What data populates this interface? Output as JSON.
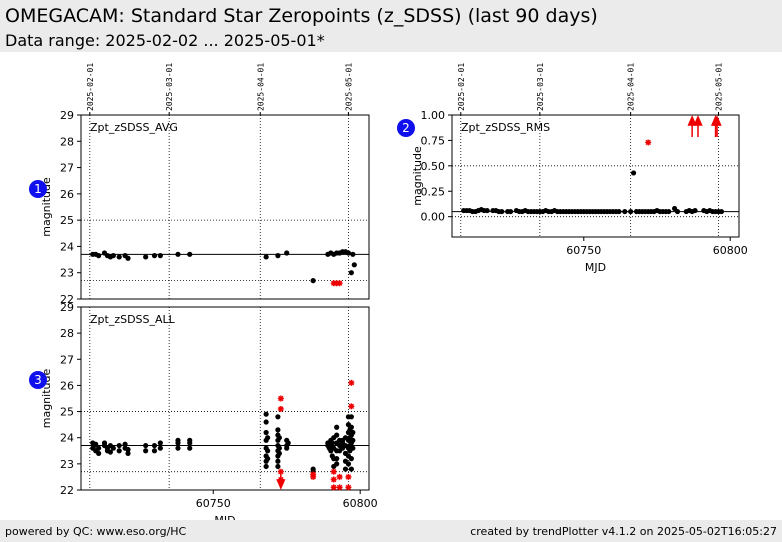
{
  "header": {
    "title": "OMEGACAM: Standard Star Zeropoints (z_SDSS) (last 90 days)",
    "subtitle": "Data range: 2025-02-02 ... 2025-05-01*"
  },
  "footer": {
    "left": "powered by QC: www.eso.org/HC",
    "right": "created by trendPlotter v4.1.2 on 2025-05-02T16:05:27"
  },
  "colors": {
    "good": "#000000",
    "outlier": "#ee0000",
    "badge": "#1010ee"
  },
  "chart_data": [
    {
      "id": "avg",
      "type": "scatter",
      "badge": "1",
      "series_label": "Zpt_zSDSS_AVG",
      "xlabel": "",
      "ylabel": "magnitude",
      "xlim": [
        60705,
        60803
      ],
      "ylim": [
        22,
        29
      ],
      "yticks": [
        "22",
        "23",
        "24",
        "25",
        "26",
        "27",
        "28",
        "29"
      ],
      "yticks_values": [
        22,
        23,
        24,
        25,
        26,
        27,
        28,
        29
      ],
      "xticks": [],
      "date_ticks": [
        {
          "mjd": 60708,
          "label": "2025-02-01"
        },
        {
          "mjd": 60735,
          "label": "2025-03-01"
        },
        {
          "mjd": 60766,
          "label": "2025-04-01"
        },
        {
          "mjd": 60796,
          "label": "2025-05-01"
        }
      ],
      "ref_lines": [
        23.7
      ],
      "dotted_lines": [
        22.7,
        25.0
      ],
      "grid": true,
      "points": [
        [
          60709,
          23.7
        ],
        [
          60710,
          23.7
        ],
        [
          60711,
          23.65
        ],
        [
          60713,
          23.75
        ],
        [
          60714,
          23.65
        ],
        [
          60715,
          23.6
        ],
        [
          60716,
          23.65
        ],
        [
          60718,
          23.6
        ],
        [
          60720,
          23.65
        ],
        [
          60721,
          23.55
        ],
        [
          60727,
          23.6
        ],
        [
          60730,
          23.65
        ],
        [
          60732,
          23.65
        ],
        [
          60738,
          23.7
        ],
        [
          60742,
          23.7
        ],
        [
          60768,
          23.6
        ],
        [
          60772,
          23.65
        ],
        [
          60775,
          23.75
        ],
        [
          60784,
          22.7
        ],
        [
          60789,
          23.7
        ],
        [
          60790,
          23.75
        ],
        [
          60791,
          23.7
        ],
        [
          60792,
          23.75
        ],
        [
          60793,
          23.75
        ],
        [
          60794,
          23.8
        ],
        [
          60795,
          23.8
        ],
        [
          60796,
          23.75
        ],
        [
          60797,
          23.0
        ],
        [
          60797.5,
          23.7
        ],
        [
          60798,
          23.3
        ]
      ],
      "outliers": [
        [
          60791,
          22.6
        ],
        [
          60792,
          22.6
        ],
        [
          60793,
          22.6
        ]
      ],
      "arrows_up": [],
      "arrows_down": []
    },
    {
      "id": "rms",
      "type": "scatter",
      "badge": "2",
      "series_label": "Zpt_zSDSS_RMS",
      "xlabel": "MJD",
      "ylabel": "magnitude",
      "xlim": [
        60705,
        60803
      ],
      "ylim": [
        -0.2,
        1.0
      ],
      "yticks": [
        "0.00",
        "0.25",
        "0.50",
        "0.75",
        "1.00"
      ],
      "yticks_values": [
        0,
        0.25,
        0.5,
        0.75,
        1.0
      ],
      "xticks": [
        "60750",
        "60800"
      ],
      "xticks_values": [
        60750,
        60800
      ],
      "date_ticks": [
        {
          "mjd": 60708,
          "label": "2025-02-01"
        },
        {
          "mjd": 60735,
          "label": "2025-03-01"
        },
        {
          "mjd": 60766,
          "label": "2025-04-01"
        },
        {
          "mjd": 60796,
          "label": "2025-05-01"
        }
      ],
      "ref_lines": [
        0.05
      ],
      "dotted_lines": [
        0.0,
        0.5
      ],
      "grid": true,
      "points": [
        [
          60709,
          0.06
        ],
        [
          60710,
          0.06
        ],
        [
          60711,
          0.06
        ],
        [
          60712,
          0.05
        ],
        [
          60713,
          0.05
        ],
        [
          60714,
          0.06
        ],
        [
          60715,
          0.07
        ],
        [
          60716,
          0.06
        ],
        [
          60717,
          0.06
        ],
        [
          60719,
          0.06
        ],
        [
          60720,
          0.06
        ],
        [
          60721,
          0.05
        ],
        [
          60722,
          0.05
        ],
        [
          60724,
          0.05
        ],
        [
          60725,
          0.05
        ],
        [
          60727,
          0.06
        ],
        [
          60728,
          0.05
        ],
        [
          60729,
          0.05
        ],
        [
          60730,
          0.06
        ],
        [
          60731,
          0.05
        ],
        [
          60732,
          0.05
        ],
        [
          60733,
          0.05
        ],
        [
          60734,
          0.05
        ],
        [
          60735,
          0.05
        ],
        [
          60736,
          0.05
        ],
        [
          60737,
          0.06
        ],
        [
          60738,
          0.05
        ],
        [
          60739,
          0.05
        ],
        [
          60740,
          0.06
        ],
        [
          60741,
          0.05
        ],
        [
          60742,
          0.05
        ],
        [
          60743,
          0.05
        ],
        [
          60744,
          0.05
        ],
        [
          60745,
          0.05
        ],
        [
          60746,
          0.05
        ],
        [
          60747,
          0.05
        ],
        [
          60748,
          0.05
        ],
        [
          60749,
          0.05
        ],
        [
          60750,
          0.05
        ],
        [
          60751,
          0.05
        ],
        [
          60752,
          0.05
        ],
        [
          60753,
          0.05
        ],
        [
          60754,
          0.05
        ],
        [
          60755,
          0.05
        ],
        [
          60756,
          0.05
        ],
        [
          60757,
          0.05
        ],
        [
          60758,
          0.05
        ],
        [
          60759,
          0.05
        ],
        [
          60760,
          0.05
        ],
        [
          60761,
          0.05
        ],
        [
          60762,
          0.05
        ],
        [
          60764,
          0.05
        ],
        [
          60766,
          0.05
        ],
        [
          60767,
          0.43
        ],
        [
          60768,
          0.05
        ],
        [
          60769,
          0.05
        ],
        [
          60770,
          0.05
        ],
        [
          60771,
          0.05
        ],
        [
          60772,
          0.05
        ],
        [
          60773,
          0.05
        ],
        [
          60774,
          0.05
        ],
        [
          60775,
          0.06
        ],
        [
          60776,
          0.05
        ],
        [
          60777,
          0.05
        ],
        [
          60778,
          0.05
        ],
        [
          60779,
          0.05
        ],
        [
          60781,
          0.08
        ],
        [
          60782,
          0.05
        ],
        [
          60785,
          0.05
        ],
        [
          60786,
          0.06
        ],
        [
          60787,
          0.05
        ],
        [
          60788,
          0.06
        ],
        [
          60791,
          0.06
        ],
        [
          60792,
          0.05
        ],
        [
          60793,
          0.06
        ],
        [
          60794,
          0.05
        ],
        [
          60795,
          0.05
        ],
        [
          60796,
          0.05
        ],
        [
          60797,
          0.05
        ]
      ],
      "outliers": [
        [
          60772,
          0.73
        ]
      ],
      "arrows_up": [
        60787,
        60789,
        60795,
        60795.5
      ],
      "arrows_down": []
    },
    {
      "id": "all",
      "type": "scatter",
      "badge": "3",
      "series_label": "Zpt_zSDSS_ALL",
      "xlabel": "MJD",
      "ylabel": "magnitude",
      "xlim": [
        60705,
        60803
      ],
      "ylim": [
        22,
        29
      ],
      "yticks": [
        "22",
        "23",
        "24",
        "25",
        "26",
        "27",
        "28",
        "29"
      ],
      "yticks_values": [
        22,
        23,
        24,
        25,
        26,
        27,
        28,
        29
      ],
      "xticks": [
        "60750",
        "60800"
      ],
      "xticks_values": [
        60750,
        60800
      ],
      "date_ticks": [],
      "ref_lines": [
        23.7
      ],
      "dotted_lines": [
        22.7,
        25.0
      ],
      "grid": true,
      "points": [
        [
          60709,
          23.8
        ],
        [
          60709,
          23.6
        ],
        [
          60709.5,
          23.7
        ],
        [
          60710,
          23.5
        ],
        [
          60710,
          23.75
        ],
        [
          60711,
          23.6
        ],
        [
          60711,
          23.4
        ],
        [
          60713,
          23.7
        ],
        [
          60713,
          23.8
        ],
        [
          60714,
          23.5
        ],
        [
          60714,
          23.6
        ],
        [
          60715,
          23.7
        ],
        [
          60715,
          23.45
        ],
        [
          60716,
          23.6
        ],
        [
          60718,
          23.7
        ],
        [
          60718,
          23.5
        ],
        [
          60720,
          23.6
        ],
        [
          60720,
          23.75
        ],
        [
          60721,
          23.4
        ],
        [
          60721,
          23.55
        ],
        [
          60727,
          23.5
        ],
        [
          60727,
          23.7
        ],
        [
          60730,
          23.5
        ],
        [
          60730,
          23.7
        ],
        [
          60732,
          23.6
        ],
        [
          60732,
          23.8
        ],
        [
          60738,
          23.6
        ],
        [
          60738,
          23.8
        ],
        [
          60738,
          23.9
        ],
        [
          60742,
          23.6
        ],
        [
          60742,
          23.8
        ],
        [
          60742,
          23.9
        ],
        [
          60768,
          24.9
        ],
        [
          60768,
          24.6
        ],
        [
          60768,
          24.2
        ],
        [
          60768,
          23.9
        ],
        [
          60768,
          23.6
        ],
        [
          60768,
          23.3
        ],
        [
          60768,
          23.1
        ],
        [
          60768,
          22.9
        ],
        [
          60768.5,
          24.0
        ],
        [
          60768.5,
          23.5
        ],
        [
          60768.5,
          23.2
        ],
        [
          60772,
          24.8
        ],
        [
          60772,
          24.3
        ],
        [
          60772,
          24.1
        ],
        [
          60772,
          23.9
        ],
        [
          60772,
          23.7
        ],
        [
          60772,
          23.5
        ],
        [
          60772,
          23.3
        ],
        [
          60772,
          23.1
        ],
        [
          60772,
          22.9
        ],
        [
          60772.5,
          24.0
        ],
        [
          60772.5,
          23.6
        ],
        [
          60772.5,
          23.4
        ],
        [
          60775,
          23.9
        ],
        [
          60775,
          23.7
        ],
        [
          60775,
          23.6
        ],
        [
          60775.5,
          23.8
        ],
        [
          60784,
          22.8
        ],
        [
          60784,
          22.7
        ],
        [
          60789,
          23.7
        ],
        [
          60789,
          23.8
        ],
        [
          60789.5,
          23.6
        ],
        [
          60789.5,
          23.75
        ],
        [
          60790,
          23.9
        ],
        [
          60790,
          23.5
        ],
        [
          60790,
          23.7
        ],
        [
          60790.5,
          23.3
        ],
        [
          60790.5,
          23.8
        ],
        [
          60791,
          24.0
        ],
        [
          60791,
          23.6
        ],
        [
          60791,
          23.2
        ],
        [
          60791,
          22.9
        ],
        [
          60792,
          24.4
        ],
        [
          60792,
          24.1
        ],
        [
          60792,
          23.8
        ],
        [
          60792,
          23.5
        ],
        [
          60792,
          23.2
        ],
        [
          60792,
          23.0
        ],
        [
          60793,
          23.9
        ],
        [
          60793,
          23.7
        ],
        [
          60793,
          23.5
        ],
        [
          60794,
          23.8
        ],
        [
          60794,
          23.6
        ],
        [
          60794,
          23.9
        ],
        [
          60795,
          24.0
        ],
        [
          60795,
          23.7
        ],
        [
          60795,
          23.4
        ],
        [
          60795,
          23.1
        ],
        [
          60795,
          22.8
        ],
        [
          60796,
          24.8
        ],
        [
          60796,
          24.5
        ],
        [
          60796,
          24.2
        ],
        [
          60796,
          23.9
        ],
        [
          60796,
          23.6
        ],
        [
          60796,
          23.3
        ],
        [
          60796,
          23.0
        ],
        [
          60796.5,
          24.3
        ],
        [
          60796.5,
          24.0
        ],
        [
          60796.5,
          23.7
        ],
        [
          60796.5,
          23.5
        ],
        [
          60797,
          24.8
        ],
        [
          60797,
          24.4
        ],
        [
          60797,
          24.1
        ],
        [
          60797,
          23.8
        ],
        [
          60797,
          23.6
        ],
        [
          60797,
          23.2
        ],
        [
          60797,
          22.8
        ],
        [
          60797.5,
          24.2
        ],
        [
          60797.5,
          23.9
        ],
        [
          60797.5,
          23.6
        ]
      ],
      "outliers": [
        [
          60773,
          25.5
        ],
        [
          60773,
          25.1
        ],
        [
          60773,
          22.7
        ],
        [
          60773,
          22.4
        ],
        [
          60784,
          22.6
        ],
        [
          60784,
          22.5
        ],
        [
          60791,
          22.7
        ],
        [
          60791,
          22.4
        ],
        [
          60791,
          22.1
        ],
        [
          60793,
          22.5
        ],
        [
          60793,
          22.1
        ],
        [
          60796,
          22.5
        ],
        [
          60796,
          22.1
        ],
        [
          60797,
          26.1
        ],
        [
          60797,
          25.2
        ]
      ],
      "arrows_up": [],
      "arrows_down": [
        60773
      ]
    }
  ]
}
